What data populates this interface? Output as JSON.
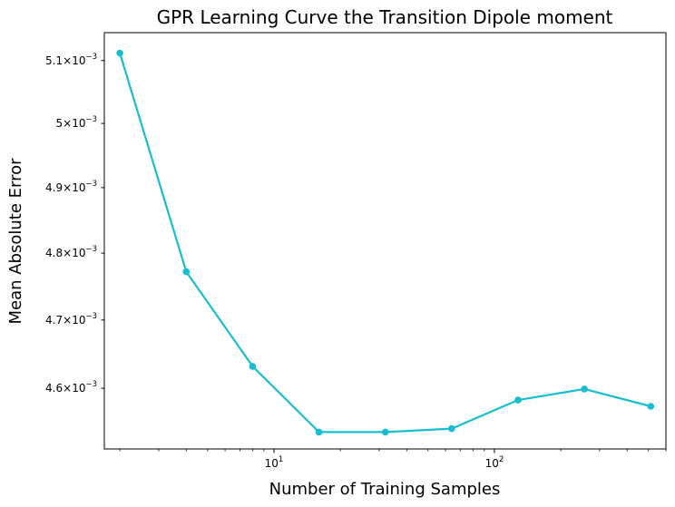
{
  "chart_data": {
    "type": "line",
    "title": "GPR Learning Curve the Transition Dipole moment",
    "xlabel": "Number of Training Samples",
    "ylabel": "Mean Absolute Error",
    "xscale": "log",
    "yscale": "log",
    "xlim": [
      1.7,
      600
    ],
    "ylim": [
      0.004513,
      0.005145
    ],
    "grid": false,
    "legend": "none",
    "color": "#17becf",
    "x_ticks": [
      {
        "value": 10,
        "base": "10",
        "exp": "1"
      },
      {
        "value": 100,
        "base": "10",
        "exp": "2"
      }
    ],
    "y_ticks": [
      {
        "value": 0.0046,
        "mantissa": "4.6",
        "times": "×",
        "base": "10",
        "exp": "−3"
      },
      {
        "value": 0.0047,
        "mantissa": "4.7",
        "times": "×",
        "base": "10",
        "exp": "−3"
      },
      {
        "value": 0.0048,
        "mantissa": "4.8",
        "times": "×",
        "base": "10",
        "exp": "−3"
      },
      {
        "value": 0.0049,
        "mantissa": "4.9",
        "times": "×",
        "base": "10",
        "exp": "−3"
      },
      {
        "value": 0.005,
        "mantissa": "5",
        "times": "×",
        "base": "10",
        "exp": "−3"
      },
      {
        "value": 0.0051,
        "mantissa": "5.1",
        "times": "×",
        "base": "10",
        "exp": "−3"
      }
    ],
    "series": [
      {
        "x": [
          2,
          4,
          8,
          16,
          32,
          64,
          128,
          256,
          512
        ],
        "y": [
          0.005112,
          0.004772,
          0.004632,
          0.004537,
          0.004537,
          0.004542,
          0.004583,
          0.004599,
          0.004574
        ]
      }
    ]
  }
}
